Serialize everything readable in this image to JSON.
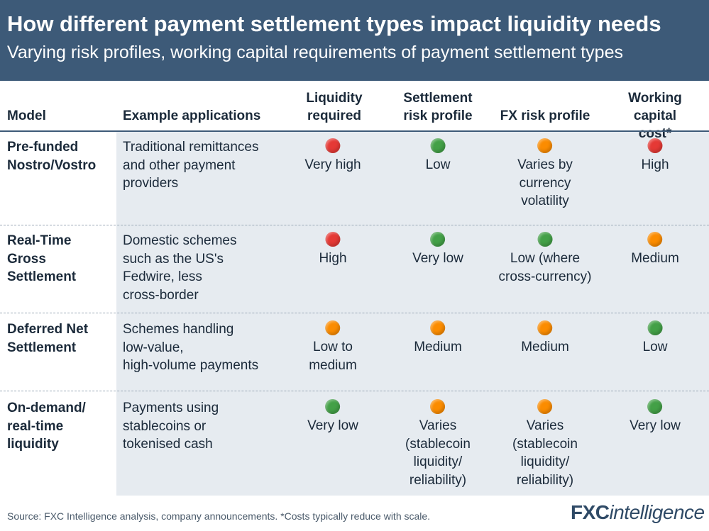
{
  "header": {
    "title": "How different payment settlement types impact liquidity needs",
    "subtitle": "Varying risk profiles, working capital requirements of payment settlement types"
  },
  "colors": {
    "header_bg": "#3d5a78",
    "red": "#e53935",
    "green": "#43a047",
    "orange": "#fb8c00",
    "row_shade": "#e6ebf0"
  },
  "chart_data": {
    "type": "table",
    "columns": [
      "Model",
      "Example applications",
      "Liquidity\nrequired",
      "Settlement\nrisk profile",
      "FX risk profile",
      "Working\ncapital cost*"
    ],
    "rows": [
      {
        "model": "Pre-funded\nNostro/Vostro",
        "example": "Traditional remittances\nand other payment\nproviders",
        "liquidity": {
          "rating": "red",
          "text": "Very high"
        },
        "settlement": {
          "rating": "green",
          "text": "Low"
        },
        "fx": {
          "rating": "orange",
          "text": "Varies by\ncurrency\nvolatility"
        },
        "capital": {
          "rating": "red",
          "text": "High"
        }
      },
      {
        "model": "Real-Time\nGross\nSettlement",
        "example": "Domestic schemes\nsuch as the US's\nFedwire, less\ncross-border",
        "liquidity": {
          "rating": "red",
          "text": "High"
        },
        "settlement": {
          "rating": "green",
          "text": "Very low"
        },
        "fx": {
          "rating": "green",
          "text": "Low (where\ncross-currency)"
        },
        "capital": {
          "rating": "orange",
          "text": "Medium"
        }
      },
      {
        "model": "Deferred Net\nSettlement",
        "example": "Schemes handling\nlow-value,\nhigh-volume payments",
        "liquidity": {
          "rating": "orange",
          "text": "Low to\nmedium"
        },
        "settlement": {
          "rating": "orange",
          "text": "Medium"
        },
        "fx": {
          "rating": "orange",
          "text": "Medium"
        },
        "capital": {
          "rating": "green",
          "text": "Low"
        }
      },
      {
        "model": "On-demand/\nreal-time\nliquidity",
        "example": "Payments using\nstablecoins or\ntokenised cash",
        "liquidity": {
          "rating": "green",
          "text": "Very low"
        },
        "settlement": {
          "rating": "orange",
          "text": "Varies\n(stablecoin\nliquidity/\nreliability)"
        },
        "fx": {
          "rating": "orange",
          "text": "Varies\n(stablecoin\nliquidity/\nreliability)"
        },
        "capital": {
          "rating": "green",
          "text": "Very low"
        }
      }
    ]
  },
  "footer": {
    "source": "Source: FXC Intelligence analysis, company announcements. *Costs typically reduce with scale.",
    "logo_fx": "FXC",
    "logo_intel": "intelligence"
  }
}
